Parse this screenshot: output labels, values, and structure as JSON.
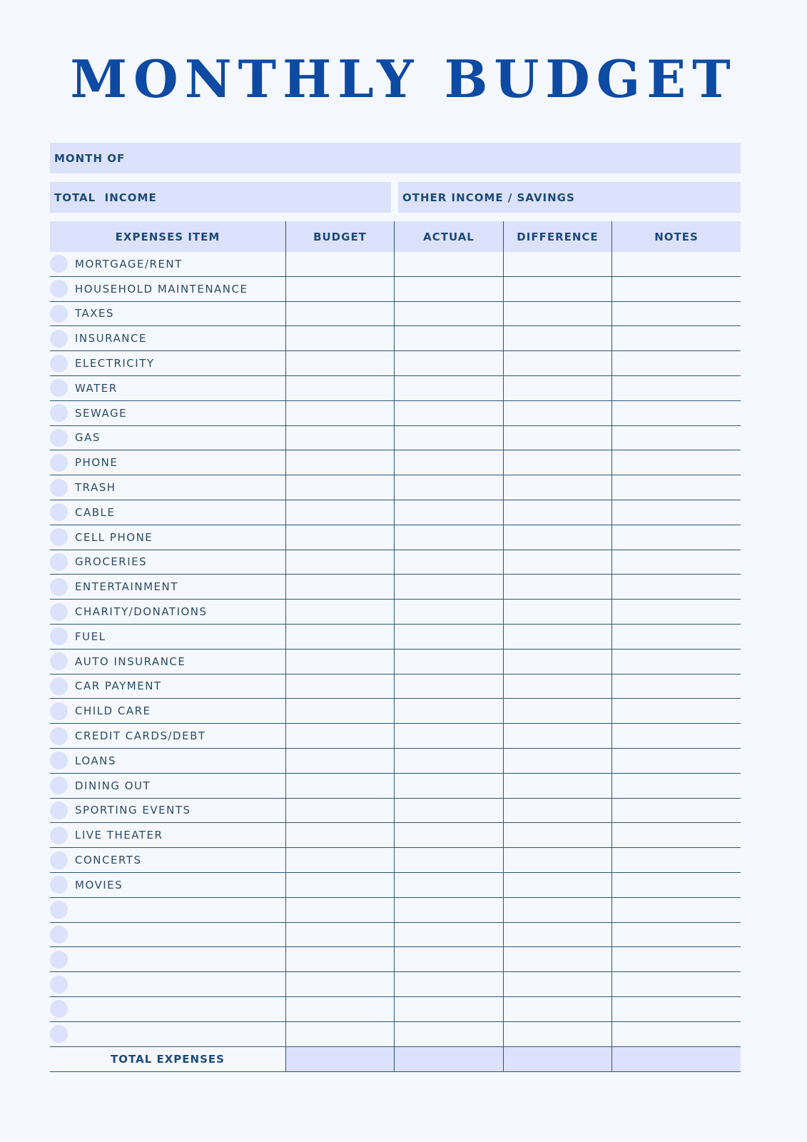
{
  "title": "MONTHLY BUDGET",
  "fields": {
    "month_of": "MONTH OF",
    "total_income": "TOTAL  INCOME",
    "other_income": "OTHER INCOME / SAVINGS"
  },
  "table": {
    "headers": [
      "EXPENSES ITEM",
      "BUDGET",
      "ACTUAL",
      "DIFFERENCE",
      "NOTES"
    ],
    "items": [
      "MORTGAGE/RENT",
      "HOUSEHOLD MAINTENANCE",
      "TAXES",
      "INSURANCE",
      "ELECTRICITY",
      "WATER",
      "SEWAGE",
      "GAS",
      "PHONE",
      "TRASH",
      "CABLE",
      "CELL PHONE",
      "GROCERIES",
      "ENTERTAINMENT",
      "CHARITY/DONATIONS",
      "FUEL",
      "AUTO INSURANCE",
      "CAR PAYMENT",
      "CHILD CARE",
      "CREDIT CARDS/DEBT",
      "LOANS",
      "DINING OUT",
      "SPORTING EVENTS",
      "LIVE THEATER",
      "CONCERTS",
      "MOVIES",
      "",
      "",
      "",
      "",
      "",
      ""
    ],
    "total_label": "TOTAL EXPENSES"
  },
  "colors": {
    "title": "#0d4aa3",
    "fill": "#dce2fb",
    "line": "#2e5677",
    "background": "#f5f8fe"
  }
}
